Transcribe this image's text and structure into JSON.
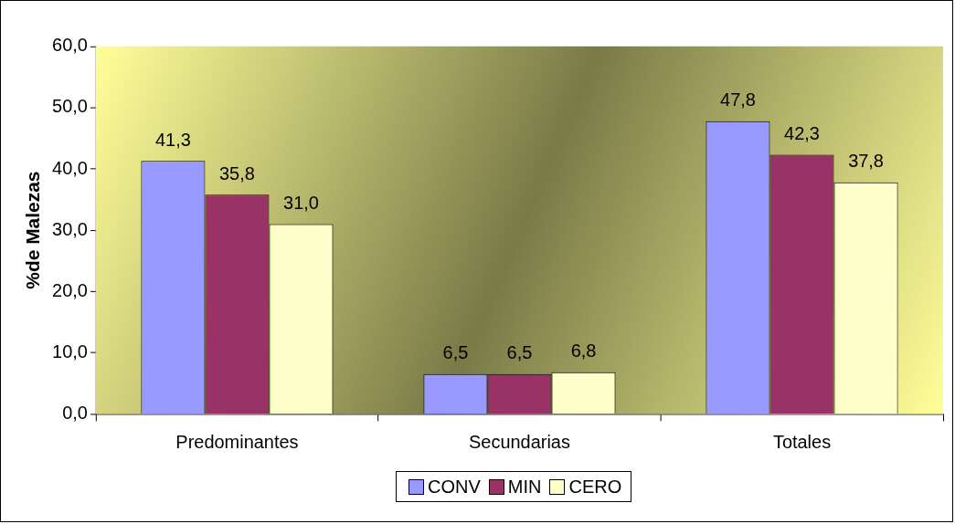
{
  "chart_data": {
    "type": "bar",
    "ylabel": "%de Malezas",
    "categories": [
      "Predominantes",
      "Secundarias",
      "Totales"
    ],
    "series": [
      {
        "name": "CONV",
        "color": "#9999ff",
        "values": [
          41.3,
          6.5,
          47.8
        ],
        "value_labels": [
          "41,3",
          "6,5",
          "47,8"
        ]
      },
      {
        "name": "MIN",
        "color": "#993366",
        "values": [
          35.8,
          6.5,
          42.3
        ],
        "value_labels": [
          "35,8",
          "6,5",
          "42,3"
        ]
      },
      {
        "name": "CERO",
        "color": "#ffffcc",
        "values": [
          31.0,
          6.8,
          37.8
        ],
        "value_labels": [
          "31,0",
          "6,8",
          "37,8"
        ]
      }
    ],
    "ylim": [
      0,
      60
    ],
    "yticks": [
      {
        "value": 0,
        "label": "0,0"
      },
      {
        "value": 10,
        "label": "10,0"
      },
      {
        "value": 20,
        "label": "20,0"
      },
      {
        "value": 30,
        "label": "30,0"
      },
      {
        "value": 40,
        "label": "40,0"
      },
      {
        "value": 50,
        "label": "50,0"
      },
      {
        "value": 60,
        "label": "60,0"
      }
    ],
    "legend": "bottom"
  }
}
